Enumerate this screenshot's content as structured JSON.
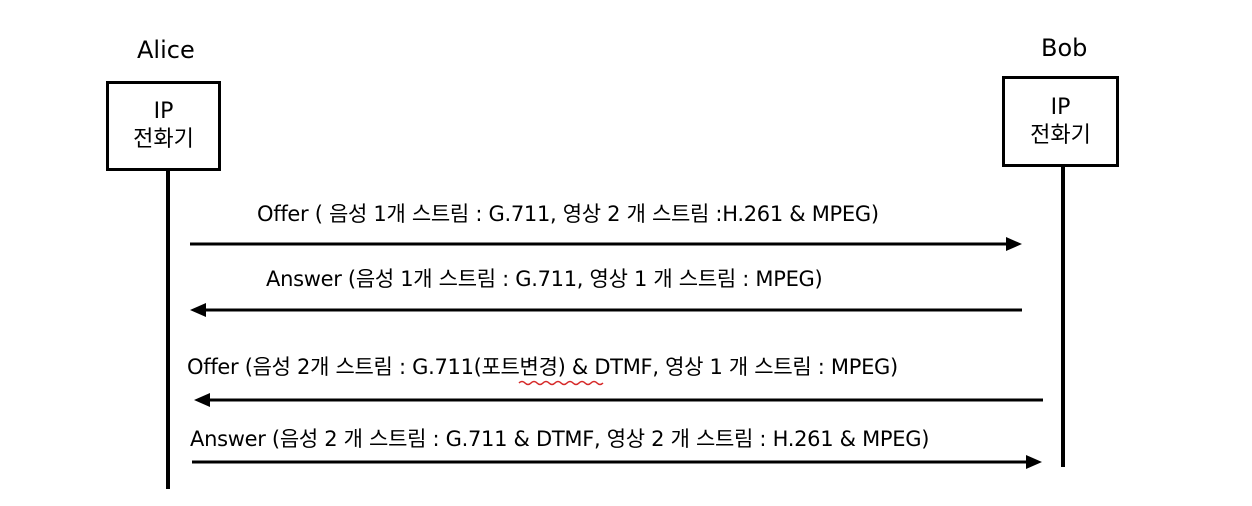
{
  "participants": {
    "alice": {
      "name": "Alice",
      "device_line1": "IP",
      "device_line2": "전화기"
    },
    "bob": {
      "name": "Bob",
      "device_line1": "IP",
      "device_line2": "전화기"
    }
  },
  "messages": [
    {
      "label": "Offer ( 음성 1개 스트림 : G.711, 영상 2 개 스트림 :H.261 & MPEG)",
      "direction": "alice-to-bob"
    },
    {
      "label": "Answer (음성 1개 스트림 : G.711, 영상 1 개 스트림 : MPEG)",
      "direction": "bob-to-alice"
    },
    {
      "label": "Offer (음성 2개 스트림 : G.711(포트변경) & DTMF,  영상 1 개 스트림 : MPEG)",
      "direction": "bob-to-alice"
    },
    {
      "label": "Answer  (음성 2 개 스트림 : G.711 & DTMF, 영상 2 개 스트림 : H.261 & MPEG)",
      "direction": "alice-to-bob"
    }
  ]
}
